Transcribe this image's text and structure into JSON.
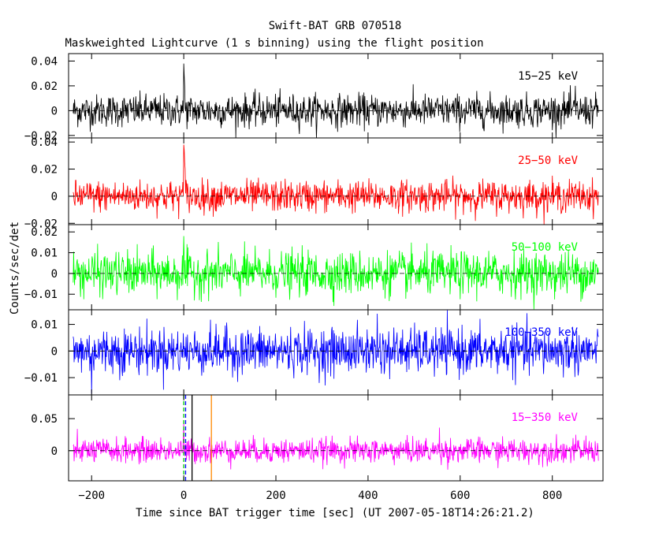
{
  "chart_data": {
    "type": "line",
    "title": "Swift-BAT GRB 070518",
    "subtitle": "Maskweighted Lightcurve (1 s binning) using the flight position",
    "xlabel": "Time since BAT trigger time [sec] (UT 2007-05-18T14:26:21.2)",
    "ylabel": "Counts/sec/det",
    "xlim": [
      -250,
      910
    ],
    "x_ticks": [
      -200,
      0,
      200,
      400,
      600,
      800
    ],
    "x_tick_labels": [
      "−200",
      "0",
      "200",
      "400",
      "600",
      "800"
    ],
    "data_x_range": [
      -240,
      900
    ],
    "panels": [
      {
        "name": "15−25 keV",
        "color": "#000000",
        "ylim": [
          -0.022,
          0.046
        ],
        "y_ticks": [
          -0.02,
          0,
          0.02,
          0.04
        ],
        "y_tick_labels": [
          "−0.02",
          "0",
          "0.02",
          "0.04"
        ],
        "noise_sigma": 0.0065,
        "peaks": [
          {
            "x": 0,
            "y": 0.038
          },
          {
            "x": 1,
            "y": 0.028
          },
          {
            "x": 2,
            "y": 0.02
          },
          {
            "x": 850,
            "y": 0.02
          }
        ]
      },
      {
        "name": "25−50 keV",
        "color": "#ff0000",
        "ylim": [
          -0.021,
          0.043
        ],
        "y_ticks": [
          -0.02,
          0,
          0.02,
          0.04
        ],
        "y_tick_labels": [
          "−0.02",
          "0",
          "0.02",
          "0.04"
        ],
        "noise_sigma": 0.0058,
        "peaks": [
          {
            "x": 0,
            "y": 0.038
          },
          {
            "x": 1,
            "y": 0.034
          },
          {
            "x": 2,
            "y": 0.025
          },
          {
            "x": 3,
            "y": 0.02
          },
          {
            "x": 5,
            "y": 0.012
          }
        ]
      },
      {
        "name": "50−100 keV",
        "color": "#00ff00",
        "ylim": [
          -0.0175,
          0.0235
        ],
        "y_ticks": [
          -0.01,
          0,
          0.01,
          0.02
        ],
        "y_tick_labels": [
          "−0.01",
          "0",
          "0.01",
          "0.02"
        ],
        "noise_sigma": 0.0052,
        "peaks": [
          {
            "x": 0,
            "y": 0.018
          }
        ]
      },
      {
        "name": "100−350 keV",
        "color": "#0000ff",
        "ylim": [
          -0.0165,
          0.0155
        ],
        "y_ticks": [
          -0.01,
          0,
          0.01
        ],
        "y_tick_labels": [
          "−0.01",
          "0",
          "0.01"
        ],
        "noise_sigma": 0.0043,
        "peaks": [
          {
            "x": 420,
            "y": 0.014
          },
          {
            "x": -200,
            "y": -0.016
          }
        ]
      },
      {
        "name": "15−350 keV",
        "color": "#ff00ff",
        "ylim": [
          -0.047,
          0.087
        ],
        "y_ticks": [
          0,
          0.05
        ],
        "y_tick_labels": [
          "0",
          "0.05"
        ],
        "noise_sigma": 0.0095,
        "peaks": [
          {
            "x": 0,
            "y": 0.045
          },
          {
            "x": 555,
            "y": 0.036
          }
        ],
        "markers": [
          {
            "x": 0,
            "color": "#00cc00",
            "style": "dashed"
          },
          {
            "x": 4,
            "color": "#0000ff",
            "style": "dashed"
          },
          {
            "x": 18,
            "color": "#000000",
            "style": "solid"
          },
          {
            "x": 60,
            "color": "#ff8800",
            "style": "solid"
          }
        ]
      }
    ]
  }
}
